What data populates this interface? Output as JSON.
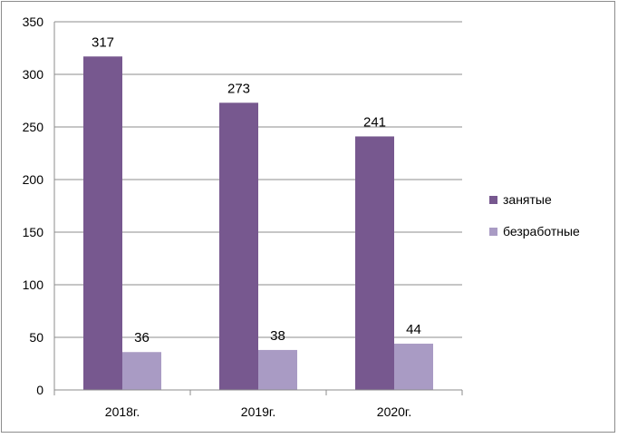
{
  "chart_data": {
    "type": "bar",
    "title": "",
    "xlabel": "",
    "ylabel": "",
    "categories": [
      "2018г.",
      "2019г.",
      "2020г."
    ],
    "series": [
      {
        "name": "занятые",
        "values": [
          317,
          273,
          241
        ],
        "color": "#77588f"
      },
      {
        "name": "безработные",
        "values": [
          36,
          38,
          44
        ],
        "color": "#a99bc4"
      }
    ],
    "ylim": [
      0,
      350
    ],
    "yticks": [
      0,
      50,
      100,
      150,
      200,
      250,
      300,
      350
    ],
    "grid": true,
    "legend_position": "right",
    "data_labels": true
  }
}
